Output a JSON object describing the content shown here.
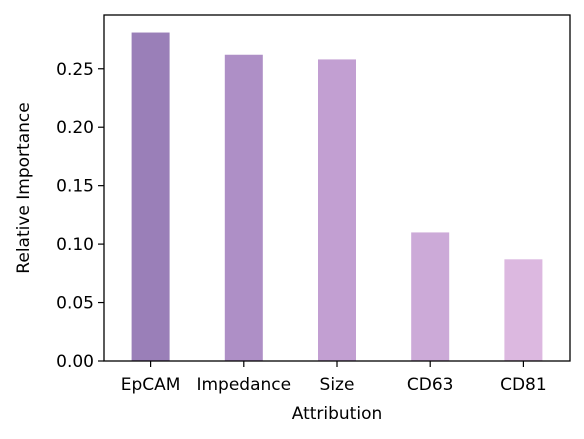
{
  "chart_data": {
    "type": "bar",
    "title": "",
    "xlabel": "Attribution",
    "ylabel": "Relative Importance",
    "categories": [
      "EpCAM",
      "Impedance",
      "Size",
      "CD63",
      "CD81"
    ],
    "values": [
      0.281,
      0.262,
      0.258,
      0.11,
      0.087
    ],
    "ylim": [
      0,
      0.296
    ],
    "yticks": [
      0.0,
      0.05,
      0.1,
      0.15,
      0.2,
      0.25
    ],
    "ytick_labels": [
      "0.00",
      "0.05",
      "0.10",
      "0.15",
      "0.20",
      "0.25"
    ],
    "bar_colors": [
      "#9a7fb8",
      "#ae8fc6",
      "#c29fd2",
      "#ccaad8",
      "#dcb8e0"
    ],
    "grid": false,
    "legend": "none"
  }
}
